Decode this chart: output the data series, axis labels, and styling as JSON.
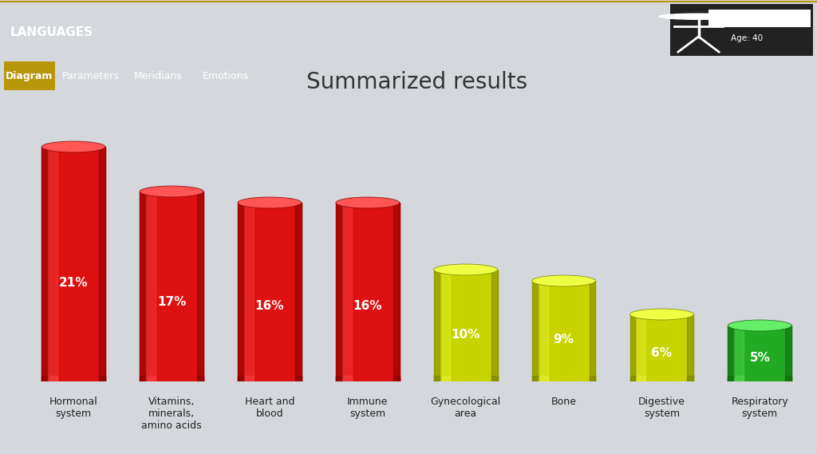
{
  "title": "Summarized results",
  "title_fontsize": 20,
  "title_color": "#333333",
  "categories": [
    "Hormonal\nsystem",
    "Vitamins,\nminerals,\namino acids",
    "Heart and\nblood",
    "Immune\nsystem",
    "Gynecological\narea",
    "Bone",
    "Digestive\nsystem",
    "Respiratory\nsystem"
  ],
  "values": [
    21,
    17,
    16,
    16,
    10,
    9,
    6,
    5
  ],
  "labels": [
    "21%",
    "17%",
    "16%",
    "16%",
    "10%",
    "9%",
    "6%",
    "5%"
  ],
  "bar_colors": [
    "#dd1111",
    "#dd1111",
    "#dd1111",
    "#dd1111",
    "#c8d400",
    "#c8d400",
    "#c8d400",
    "#22aa22"
  ],
  "bar_dark_colors": [
    "#880000",
    "#880000",
    "#880000",
    "#880000",
    "#7a8200",
    "#7a8200",
    "#7a8200",
    "#116611"
  ],
  "bar_light_colors": [
    "#ff5555",
    "#ff5555",
    "#ff5555",
    "#ff5555",
    "#eeff44",
    "#eeff44",
    "#eeff44",
    "#66ee66"
  ],
  "background_color": "#d4d8dc",
  "header_bg": "#1c1c1c",
  "header_text": "LANGUAGES",
  "header_text_color": "#ffffff",
  "icon_bg": "#2a2a2a",
  "tab_bar_bg": "#666666",
  "tab_labels": [
    "Diagram",
    "Parameters",
    "Meridians",
    "Emotions"
  ],
  "active_tab": "Diagram",
  "active_tab_color": "#b8960a",
  "tab_text_color": "#ffffff",
  "ylim": [
    0,
    25
  ],
  "bar_width": 0.65,
  "ellipse_aspect": 0.18,
  "label_fontsize": 11,
  "cat_fontsize": 9
}
